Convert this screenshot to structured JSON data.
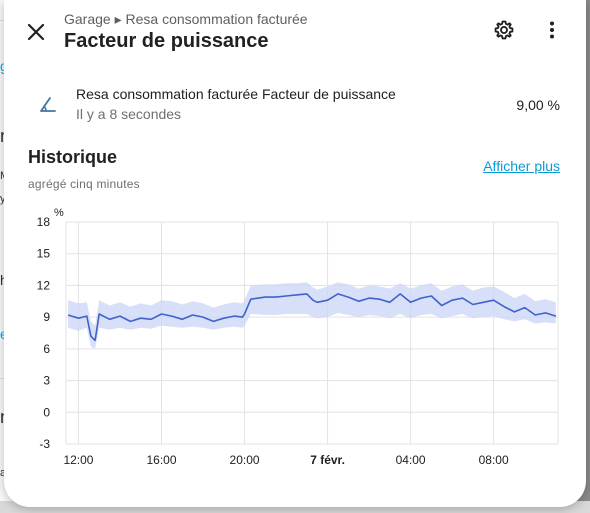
{
  "background": {
    "fragments": [
      "g",
      "n",
      "M",
      "y",
      "h",
      "e",
      "n",
      "a"
    ]
  },
  "header": {
    "breadcrumb": "Garage ▸ Resa consommation facturée",
    "title": "Facteur de puissance",
    "close_icon": "close-icon",
    "settings_icon": "gear-icon",
    "more_icon": "more-vertical-icon"
  },
  "entity": {
    "icon": "angle-acute-icon",
    "name": "Resa consommation facturée Facteur de puissance",
    "last_changed": "Il y a 8 secondes",
    "value": "9,00 %"
  },
  "history": {
    "title": "Historique",
    "subtitle": "agrégé cinq minutes",
    "more_link": "Afficher plus"
  },
  "colors": {
    "line": "#3f63c9",
    "band": "#c9d6f5",
    "link": "#0a9bd6"
  },
  "chart_data": {
    "type": "line",
    "unit": "%",
    "ylim": [
      -3,
      18
    ],
    "y_ticks": [
      "18",
      "15",
      "12",
      "9",
      "6",
      "3",
      "0",
      "-3"
    ],
    "x_ticks": [
      "12:00",
      "16:00",
      "20:00",
      "7 févr.",
      "04:00",
      "08:00"
    ],
    "x_tick_hours": [
      12,
      16,
      20,
      24,
      28,
      32
    ],
    "x_range_hours": [
      11.4,
      35.1
    ],
    "grid": true,
    "series": [
      {
        "x": [
          11.5,
          12.0,
          12.4,
          12.6,
          12.8,
          13.0,
          13.5,
          14.0,
          14.5,
          15.0,
          15.5,
          16.0,
          16.5,
          17.0,
          17.5,
          18.0,
          18.5,
          19.0,
          19.5,
          19.9,
          20.0,
          20.3,
          21.0,
          21.5,
          22.0,
          22.5,
          23.0,
          23.3,
          23.5,
          24.0,
          24.5,
          25.0,
          25.5,
          26.0,
          26.5,
          27.0,
          27.5,
          28.0,
          28.5,
          29.0,
          29.5,
          30.0,
          30.5,
          31.0,
          31.5,
          32.0,
          32.5,
          33.0,
          33.5,
          34.0,
          34.5,
          35.0
        ],
        "mean": [
          9.2,
          8.9,
          9.1,
          7.2,
          6.8,
          9.3,
          8.8,
          9.1,
          8.6,
          8.9,
          8.8,
          9.3,
          9.1,
          8.8,
          9.2,
          9.0,
          8.6,
          8.9,
          9.1,
          9.0,
          9.3,
          10.7,
          10.9,
          10.9,
          11.0,
          11.1,
          11.2,
          10.6,
          10.4,
          10.6,
          11.2,
          10.9,
          10.5,
          10.8,
          10.7,
          10.4,
          11.2,
          10.4,
          10.8,
          11.0,
          10.1,
          10.6,
          10.8,
          10.2,
          10.4,
          10.6,
          10.0,
          9.5,
          9.9,
          9.2,
          9.4,
          9.1
        ],
        "min": [
          8.0,
          7.7,
          8.0,
          6.2,
          6.0,
          8.0,
          7.8,
          8.0,
          7.8,
          8.0,
          7.9,
          8.2,
          8.1,
          8.0,
          8.1,
          8.0,
          7.8,
          8.0,
          8.1,
          8.0,
          8.2,
          9.3,
          9.2,
          9.2,
          9.3,
          9.3,
          9.3,
          9.0,
          8.9,
          9.0,
          9.4,
          9.2,
          9.0,
          9.2,
          9.1,
          8.9,
          9.3,
          8.9,
          9.2,
          9.3,
          8.9,
          9.1,
          9.3,
          8.9,
          9.0,
          9.1,
          8.8,
          8.6,
          8.8,
          8.4,
          8.5,
          8.4
        ],
        "max": [
          10.6,
          10.3,
          10.4,
          8.6,
          8.2,
          10.6,
          10.1,
          10.4,
          10.0,
          10.3,
          10.1,
          10.6,
          10.5,
          10.2,
          10.5,
          10.3,
          9.9,
          10.2,
          10.4,
          10.3,
          10.6,
          12.0,
          12.1,
          12.1,
          12.2,
          12.2,
          12.3,
          11.8,
          11.6,
          11.9,
          12.3,
          12.1,
          11.7,
          12.0,
          11.9,
          11.7,
          12.2,
          11.7,
          12.0,
          12.2,
          11.5,
          11.9,
          12.1,
          11.5,
          11.8,
          11.9,
          11.4,
          10.8,
          11.2,
          10.5,
          10.7,
          10.4
        ]
      }
    ]
  }
}
